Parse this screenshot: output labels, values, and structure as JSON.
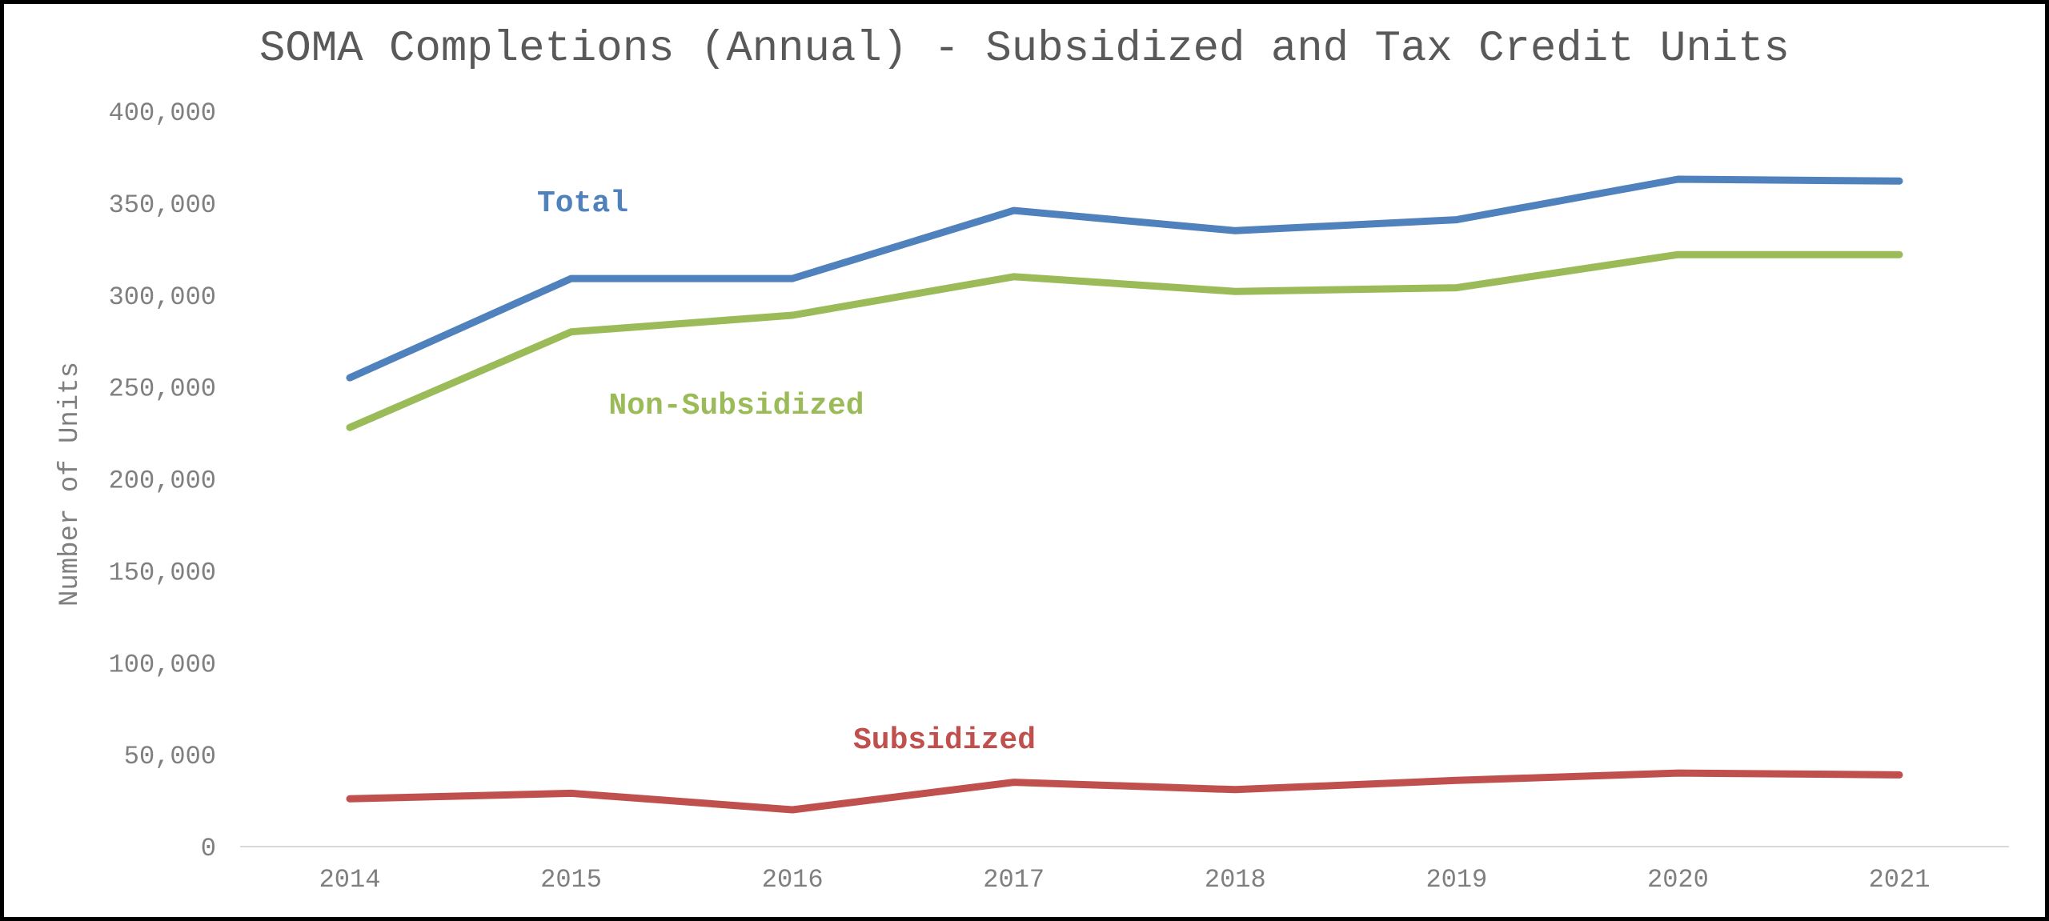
{
  "chart_data": {
    "type": "line",
    "title": "SOMA Completions (Annual) - Subsidized and Tax Credit Units",
    "xlabel": "",
    "ylabel": "Number of Units",
    "ylim": [
      0,
      400000
    ],
    "yticks": [
      0,
      50000,
      100000,
      150000,
      200000,
      250000,
      300000,
      350000,
      400000
    ],
    "ytick_labels": [
      "0",
      "50,000",
      "100,000",
      "150,000",
      "200,000",
      "250,000",
      "300,000",
      "350,000",
      "400,000"
    ],
    "categories": [
      "2014",
      "2015",
      "2016",
      "2017",
      "2018",
      "2019",
      "2020",
      "2021"
    ],
    "grid": false,
    "series": [
      {
        "name": "Total",
        "color": "#4f81bd",
        "values": [
          255000,
          309000,
          309000,
          346000,
          335000,
          341000,
          363000,
          362000
        ]
      },
      {
        "name": "Non-Subsidized",
        "color": "#9bbb59",
        "values": [
          228000,
          280000,
          289000,
          310000,
          302000,
          304000,
          322000,
          322000
        ]
      },
      {
        "name": "Subsidized",
        "color": "#c0504d",
        "values": [
          26000,
          29000,
          20000,
          35000,
          31000,
          36000,
          40000,
          39000
        ]
      }
    ]
  }
}
